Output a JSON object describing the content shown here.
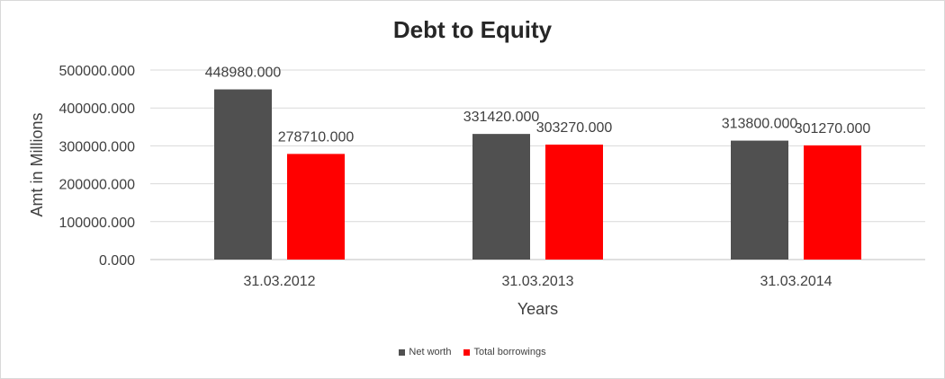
{
  "chart_data": {
    "type": "bar",
    "title": "Debt to Equity",
    "xlabel": "Years",
    "ylabel": "Amt in Millions",
    "categories": [
      "31.03.2012",
      "31.03.2013",
      "31.03.2014"
    ],
    "series": [
      {
        "name": "Net worth",
        "color": "#505050",
        "values": [
          448980,
          331420,
          313800
        ],
        "labels": [
          "448980.000",
          "331420.000",
          "313800.000"
        ]
      },
      {
        "name": "Total borrowings",
        "color": "#ff0000",
        "values": [
          278710,
          303270,
          301270
        ],
        "labels": [
          "278710.000",
          "303270.000",
          "301270.000"
        ]
      }
    ],
    "ylim": [
      0,
      500000
    ],
    "yticks": [
      0,
      100000,
      200000,
      300000,
      400000,
      500000
    ],
    "ytick_labels": [
      "0.000",
      "100000.000",
      "200000.000",
      "300000.000",
      "400000.000",
      "500000.000"
    ],
    "grid": true,
    "legend_position": "bottom"
  }
}
